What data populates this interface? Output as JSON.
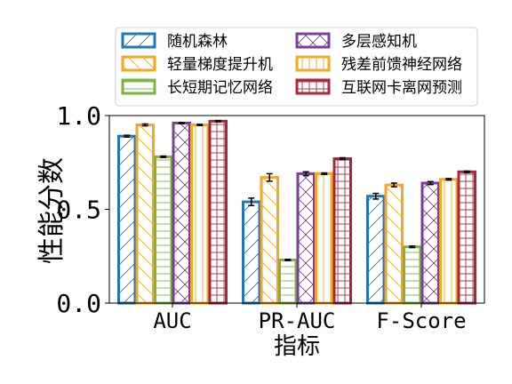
{
  "chart_data": {
    "type": "bar",
    "xlabel": "指标",
    "ylabel": "性能分数",
    "categories": [
      "AUC",
      "PR-AUC",
      "F-Score"
    ],
    "ylim": [
      0,
      1.0
    ],
    "yticks": [
      "0.0",
      "0.5",
      "1.0"
    ],
    "legend_position": "top",
    "series": [
      {
        "name": "随机森林",
        "color": "#1f77b4",
        "hatch": "diagonal",
        "values": [
          0.89,
          0.54,
          0.57
        ],
        "errors": [
          0.005,
          0.02,
          0.015
        ]
      },
      {
        "name": "轻量梯度提升机",
        "color": "#f5a623",
        "hatch": "back-diagonal",
        "values": [
          0.95,
          0.67,
          0.63
        ],
        "errors": [
          0.005,
          0.02,
          0.01
        ]
      },
      {
        "name": "长短期记忆网络",
        "color": "#7cb342",
        "hatch": "horizontal",
        "values": [
          0.78,
          0.23,
          0.3
        ],
        "errors": [
          0.004,
          0.003,
          0.004
        ]
      },
      {
        "name": "多层感知机",
        "color": "#7b3f98",
        "hatch": "cross-diagonal",
        "values": [
          0.96,
          0.69,
          0.64
        ],
        "errors": [
          0.003,
          0.01,
          0.008
        ]
      },
      {
        "name": "残差前馈神经网络",
        "color": "#f5a623",
        "hatch": "vertical",
        "values": [
          0.95,
          0.69,
          0.66
        ],
        "errors": [
          0.003,
          0.004,
          0.004
        ]
      },
      {
        "name": "互联网卡离网预测",
        "color": "#a5283e",
        "hatch": "grid",
        "values": [
          0.97,
          0.77,
          0.7
        ],
        "errors": [
          0.003,
          0.005,
          0.004
        ]
      }
    ]
  }
}
